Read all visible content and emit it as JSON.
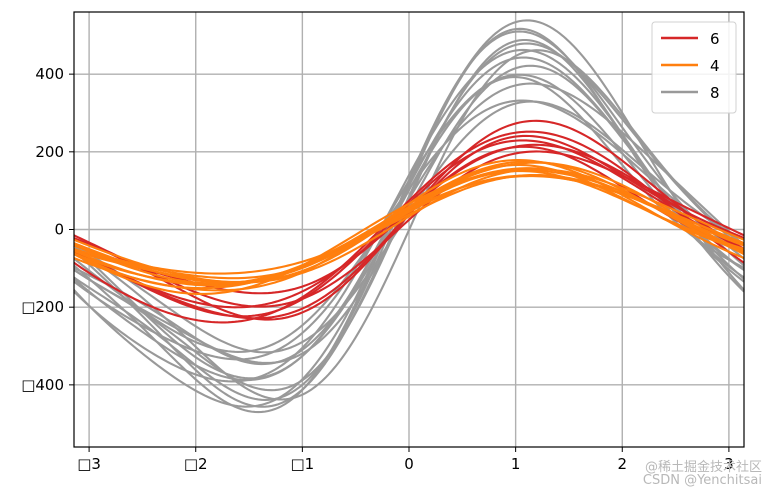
{
  "chart_data": {
    "type": "line",
    "plot_kind": "andrews_curves",
    "title": "",
    "xlabel": "",
    "ylabel": "",
    "xlim": [
      -3.1416,
      3.1416
    ],
    "ylim": [
      -560,
      560
    ],
    "grid": true,
    "xticks": [
      -3,
      -2,
      -1,
      0,
      1,
      2,
      3
    ],
    "xtick_labels": [
      "□3",
      "□2",
      "□1",
      "0",
      "1",
      "2",
      "3"
    ],
    "yticks": [
      -400,
      -200,
      0,
      200,
      400
    ],
    "ytick_labels": [
      "□400",
      "□200",
      "0",
      "200",
      "400"
    ],
    "legend": {
      "position": "top-right",
      "entries": [
        {
          "label": "6",
          "color": "#d62728"
        },
        {
          "label": "4",
          "color": "#ff7f0e"
        },
        {
          "label": "8",
          "color": "#999999"
        }
      ]
    },
    "series_groups": [
      {
        "name": "8",
        "color": "#999999",
        "curves": [
          [
            -8,
            420,
            118,
            115,
            0
          ],
          [
            -4,
            440,
            110,
            100,
            20
          ],
          [
            -6,
            400,
            90,
            110,
            -10
          ],
          [
            0,
            430,
            70,
            90,
            15
          ],
          [
            -10,
            380,
            120,
            70,
            0
          ],
          [
            -5,
            350,
            80,
            80,
            -20
          ],
          [
            -12,
            320,
            100,
            90,
            10
          ],
          [
            -3,
            300,
            40,
            60,
            5
          ],
          [
            -8,
            460,
            140,
            80,
            -10
          ],
          [
            -2,
            360,
            60,
            50,
            20
          ],
          [
            -9,
            410,
            20,
            100,
            -15
          ],
          [
            -6,
            330,
            130,
            60,
            0
          ],
          [
            0,
            300,
            90,
            40,
            15
          ],
          [
            -7,
            390,
            150,
            60,
            -5
          ]
        ]
      },
      {
        "name": "6",
        "color": "#d62728",
        "curves": [
          [
            0,
            200,
            50,
            20,
            0
          ],
          [
            -5,
            210,
            60,
            30,
            10
          ],
          [
            5,
            240,
            50,
            40,
            -10
          ],
          [
            0,
            190,
            20,
            30,
            5
          ],
          [
            -8,
            230,
            80,
            20,
            0
          ],
          [
            0,
            215,
            30,
            50,
            8
          ],
          [
            5,
            170,
            50,
            40,
            -5
          ]
        ]
      },
      {
        "name": "4",
        "color": "#ff7f0e",
        "curves": [
          [
            0,
            140,
            55,
            10,
            0
          ],
          [
            5,
            145,
            60,
            15,
            -5
          ],
          [
            0,
            130,
            45,
            5,
            5
          ],
          [
            -5,
            150,
            70,
            20,
            0
          ],
          [
            5,
            120,
            40,
            10,
            -5
          ],
          [
            0,
            135,
            55,
            25,
            0
          ],
          [
            -5,
            145,
            65,
            0,
            5
          ],
          [
            5,
            140,
            30,
            15,
            0
          ],
          [
            0,
            125,
            50,
            20,
            0
          ],
          [
            5,
            150,
            60,
            5,
            -5
          ],
          [
            0,
            130,
            40,
            10,
            5
          ]
        ]
      }
    ]
  },
  "watermark": {
    "line1": "@稀土掘金技术社区",
    "line2": "CSDN @Yenchitsai"
  }
}
